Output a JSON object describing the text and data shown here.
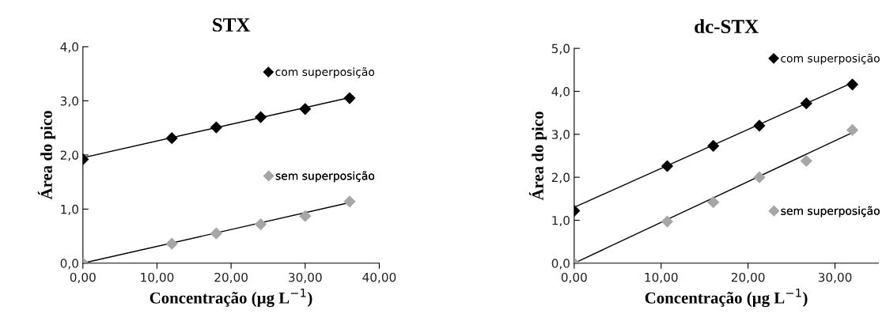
{
  "chart_data": [
    {
      "type": "scatter",
      "title": "STX",
      "xlabel": "Concentração (µg L$^{−1}$)",
      "ylabel": "Área do pico",
      "marker": "diamond",
      "legend": "right",
      "grid": false,
      "xlim": [
        0,
        40
      ],
      "xticks": [
        {
          "value": 0,
          "label": "0,00"
        },
        {
          "value": 10,
          "label": "10,00"
        },
        {
          "value": 20,
          "label": "20,00"
        },
        {
          "value": 30,
          "label": "30,00"
        },
        {
          "value": 40,
          "label": "40,00"
        }
      ],
      "ylim": [
        0,
        4
      ],
      "yticks": [
        {
          "value": 0,
          "label": "0,0"
        },
        {
          "value": 1,
          "label": "1,0"
        },
        {
          "value": 2,
          "label": "2,0"
        },
        {
          "value": 3,
          "label": "3,0"
        },
        {
          "value": 4,
          "label": "4,0"
        }
      ],
      "series": [
        {
          "name": "com superposição",
          "color": "#000000",
          "x": [
            0,
            12,
            18,
            24,
            30,
            36
          ],
          "values": [
            1.92,
            2.31,
            2.51,
            2.7,
            2.85,
            3.05
          ]
        },
        {
          "name": "sem superposição",
          "color": "#a6a6a6",
          "x": [
            0,
            12,
            18,
            24,
            30,
            36
          ],
          "values": [
            0,
            0.36,
            0.55,
            0.72,
            0.87,
            1.14
          ]
        },
        {
          "type": "line",
          "marker": "none",
          "color": "#000000",
          "x": [
            0,
            36
          ],
          "values": [
            1.95,
            3.06
          ]
        },
        {
          "type": "line",
          "marker": "none",
          "color": "#000000",
          "x": [
            0,
            36
          ],
          "values": [
            0,
            1.12
          ]
        }
      ]
    },
    {
      "type": "scatter",
      "title": "dc-STX",
      "xlabel": "Concentração (µg L$^{−1}$)",
      "ylabel": "Área do pico",
      "marker": "diamond",
      "legend": "right",
      "grid": false,
      "xlim": [
        0,
        35
      ],
      "xticks": [
        {
          "value": 0,
          "label": "0,00"
        },
        {
          "value": 10,
          "label": "10,00"
        },
        {
          "value": 20,
          "label": "20,00"
        },
        {
          "value": 30,
          "label": "30,00"
        }
      ],
      "ylim": [
        0,
        5
      ],
      "yticks": [
        {
          "value": 0,
          "label": "0,0"
        },
        {
          "value": 1,
          "label": "1,0"
        },
        {
          "value": 2,
          "label": "2,0"
        },
        {
          "value": 3,
          "label": "3,0"
        },
        {
          "value": 4,
          "label": "4,0"
        },
        {
          "value": 5,
          "label": "5,0"
        }
      ],
      "series": [
        {
          "name": "com superposição",
          "color": "#000000",
          "x": [
            0,
            10.7,
            16.0,
            21.3,
            26.7,
            32.0
          ],
          "values": [
            1.22,
            2.26,
            2.73,
            3.2,
            3.72,
            4.16
          ]
        },
        {
          "name": "sem superposição",
          "color": "#a6a6a6",
          "x": [
            0,
            10.7,
            16.0,
            21.3,
            26.7,
            32.0
          ],
          "values": [
            0,
            0.97,
            1.42,
            2.0,
            2.38,
            3.1
          ]
        },
        {
          "type": "line",
          "marker": "none",
          "color": "#000000",
          "x": [
            0,
            32.0
          ],
          "values": [
            1.3,
            4.2
          ]
        },
        {
          "type": "line",
          "marker": "none",
          "color": "#000000",
          "x": [
            0,
            32.0
          ],
          "values": [
            0,
            3.04
          ]
        }
      ]
    }
  ]
}
